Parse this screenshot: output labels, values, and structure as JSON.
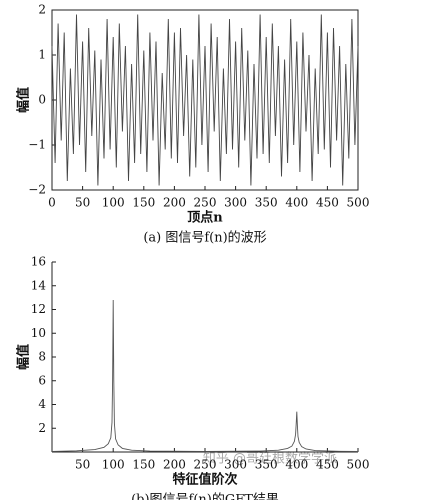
{
  "chart_data": [
    {
      "type": "line",
      "ylabel": "幅值",
      "xlabel": "顶点n",
      "caption": "(a) 图信号f(n)的波形",
      "color": "#444444",
      "box": true,
      "xlim": [
        0,
        500
      ],
      "ylim": [
        -2,
        2
      ],
      "xticks": [
        0,
        50,
        100,
        150,
        200,
        250,
        300,
        350,
        400,
        450,
        500
      ],
      "yticks": [
        {
          "value": -2,
          "label": "−2"
        },
        {
          "value": -1,
          "label": "−1"
        },
        0,
        1,
        2
      ],
      "x": [
        0,
        5,
        10,
        15,
        20,
        25,
        30,
        35,
        40,
        45,
        50,
        55,
        60,
        65,
        70,
        75,
        80,
        85,
        90,
        95,
        100,
        105,
        110,
        115,
        120,
        125,
        130,
        135,
        140,
        145,
        150,
        155,
        160,
        165,
        170,
        175,
        180,
        185,
        190,
        195,
        200,
        205,
        210,
        215,
        220,
        225,
        230,
        235,
        240,
        245,
        250,
        255,
        260,
        265,
        270,
        275,
        280,
        285,
        290,
        295,
        300,
        305,
        310,
        315,
        320,
        325,
        330,
        335,
        340,
        345,
        350,
        355,
        360,
        365,
        370,
        375,
        380,
        385,
        390,
        395,
        400,
        405,
        410,
        415,
        420,
        425,
        430,
        435,
        440,
        445,
        450,
        455,
        460,
        465,
        470,
        475,
        480,
        485,
        490,
        495,
        500
      ],
      "values": [
        1.2,
        -1.4,
        1.7,
        -0.9,
        1.5,
        -1.8,
        0.7,
        -1.2,
        1.9,
        -1.0,
        1.3,
        -1.6,
        1.6,
        -0.8,
        1.1,
        -1.9,
        0.9,
        -1.3,
        1.8,
        -1.1,
        1.4,
        -1.5,
        1.7,
        -0.7,
        1.2,
        -1.8,
        0.8,
        -1.4,
        1.9,
        -1.2,
        1.1,
        -1.6,
        1.5,
        -0.9,
        1.3,
        -1.9,
        0.6,
        -1.1,
        1.8,
        -1.3,
        1.5,
        -1.4,
        1.6,
        -0.8,
        1.0,
        -1.7,
        0.9,
        -1.5,
        1.9,
        -1.0,
        1.2,
        -1.6,
        1.7,
        -0.7,
        1.4,
        -1.8,
        0.7,
        -1.2,
        1.8,
        -1.1,
        1.3,
        -1.5,
        1.6,
        -0.9,
        1.1,
        -1.9,
        0.8,
        -1.3,
        1.9,
        -1.2,
        1.4,
        -1.4,
        1.7,
        -0.8,
        1.2,
        -1.7,
        0.9,
        -1.4,
        1.8,
        -1.0,
        1.3,
        -1.6,
        1.5,
        -0.7,
        1.0,
        -1.8,
        0.7,
        -1.2,
        1.9,
        -1.1,
        1.5,
        -1.5,
        1.6,
        -0.9,
        1.2,
        -1.9,
        0.8,
        -1.3,
        1.8,
        -1.0,
        1.2
      ]
    },
    {
      "type": "line",
      "ylabel": "幅值",
      "xlabel": "特征值阶次",
      "caption": "(b)图信号f(n)的GFT结果",
      "color": "#555555",
      "box": false,
      "xlim": [
        0,
        500
      ],
      "ylim": [
        0,
        16
      ],
      "xticks": [
        50,
        100,
        150,
        200,
        250,
        300,
        350,
        400,
        450,
        500
      ],
      "yticks": [
        2,
        4,
        6,
        8,
        10,
        12,
        14,
        16
      ],
      "x": [
        0,
        40,
        70,
        85,
        92,
        96,
        98,
        99,
        100,
        101,
        102,
        104,
        108,
        115,
        130,
        160,
        250,
        340,
        370,
        385,
        392,
        396,
        398,
        399,
        400,
        401,
        402,
        404,
        408,
        415,
        430,
        470,
        500
      ],
      "values": [
        0.05,
        0.1,
        0.2,
        0.4,
        0.7,
        1.2,
        2.5,
        6,
        12.8,
        6,
        2.4,
        1.1,
        0.6,
        0.3,
        0.15,
        0.08,
        0.05,
        0.08,
        0.15,
        0.3,
        0.5,
        0.9,
        1.5,
        2.4,
        3.4,
        2.2,
        1.3,
        0.8,
        0.45,
        0.25,
        0.12,
        0.06,
        0.04
      ]
    }
  ],
  "watermark": "知乎 @哥廷根数学学派"
}
